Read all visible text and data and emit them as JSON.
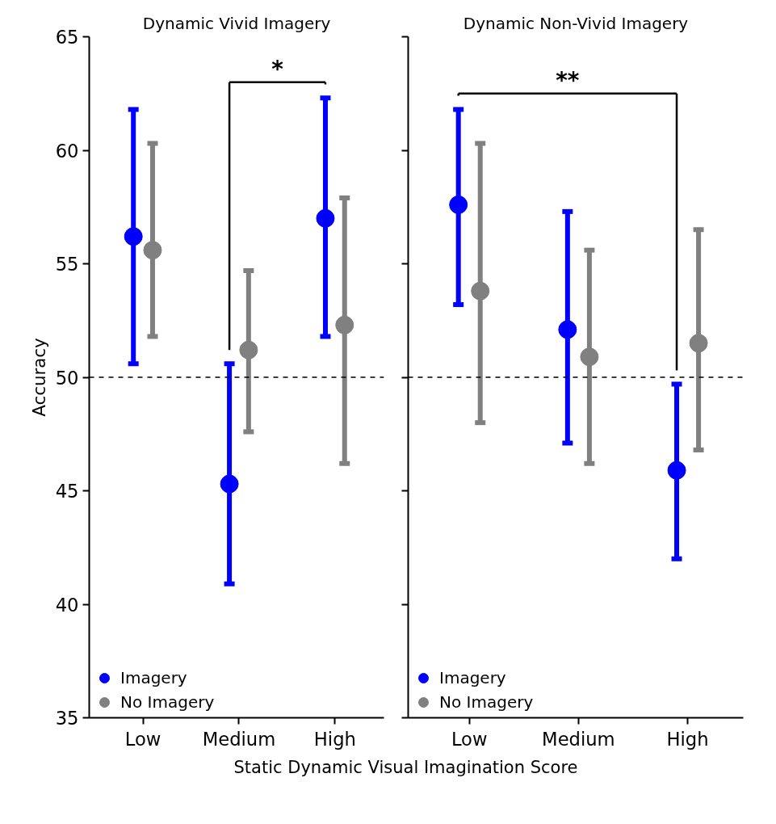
{
  "chart_data": [
    {
      "type": "scatter",
      "title": "Dynamic Vivid Imagery",
      "ylabel": "Accuracy",
      "xlabel": "Static Dynamic Visual Imagination Score",
      "categories": [
        "Low",
        "Medium",
        "High"
      ],
      "ylim": [
        35,
        65
      ],
      "yticks": [
        35,
        40,
        45,
        50,
        55,
        60,
        65
      ],
      "grid": false,
      "legend": "bottom left",
      "marker": "circle",
      "series": [
        {
          "name": "Imagery",
          "color": "#0000ff",
          "values": [
            56.2,
            45.3,
            57.0
          ],
          "errors": [
            [
              50.6,
              61.8
            ],
            [
              40.9,
              50.6
            ],
            [
              51.8,
              62.3
            ]
          ]
        },
        {
          "name": "No Imagery",
          "color": "#808080",
          "values": [
            55.6,
            51.2,
            52.3
          ],
          "errors": [
            [
              51.8,
              60.3
            ],
            [
              47.6,
              54.7
            ],
            [
              46.2,
              57.9
            ]
          ]
        }
      ],
      "ref_lines": [
        {
          "axis": "y",
          "value": 50,
          "color": "#000000",
          "line_style": "dashed"
        }
      ],
      "annotations": [
        "*"
      ]
    },
    {
      "type": "scatter",
      "title": "Dynamic Non-Vivid Imagery",
      "categories": [
        "Low",
        "Medium",
        "High"
      ],
      "ylim": [
        35,
        65
      ],
      "yticks": [
        35,
        40,
        45,
        50,
        55,
        60,
        65
      ],
      "tick_labels": "x",
      "grid": false,
      "legend": "bottom left",
      "marker": "circle",
      "series": [
        {
          "name": "Imagery",
          "color": "#0000ff",
          "values": [
            57.6,
            52.1,
            45.9
          ],
          "errors": [
            [
              53.2,
              61.8
            ],
            [
              47.1,
              57.3
            ],
            [
              42.0,
              49.7
            ]
          ]
        },
        {
          "name": "No Imagery",
          "color": "#808080",
          "values": [
            53.8,
            50.9,
            51.5
          ],
          "errors": [
            [
              48.0,
              60.3
            ],
            [
              46.2,
              55.6
            ],
            [
              46.8,
              56.5
            ]
          ]
        }
      ],
      "ref_lines": [
        {
          "axis": "y",
          "value": 50,
          "color": "#000000",
          "line_style": "dashed"
        }
      ],
      "annotations": [
        "**"
      ]
    }
  ]
}
